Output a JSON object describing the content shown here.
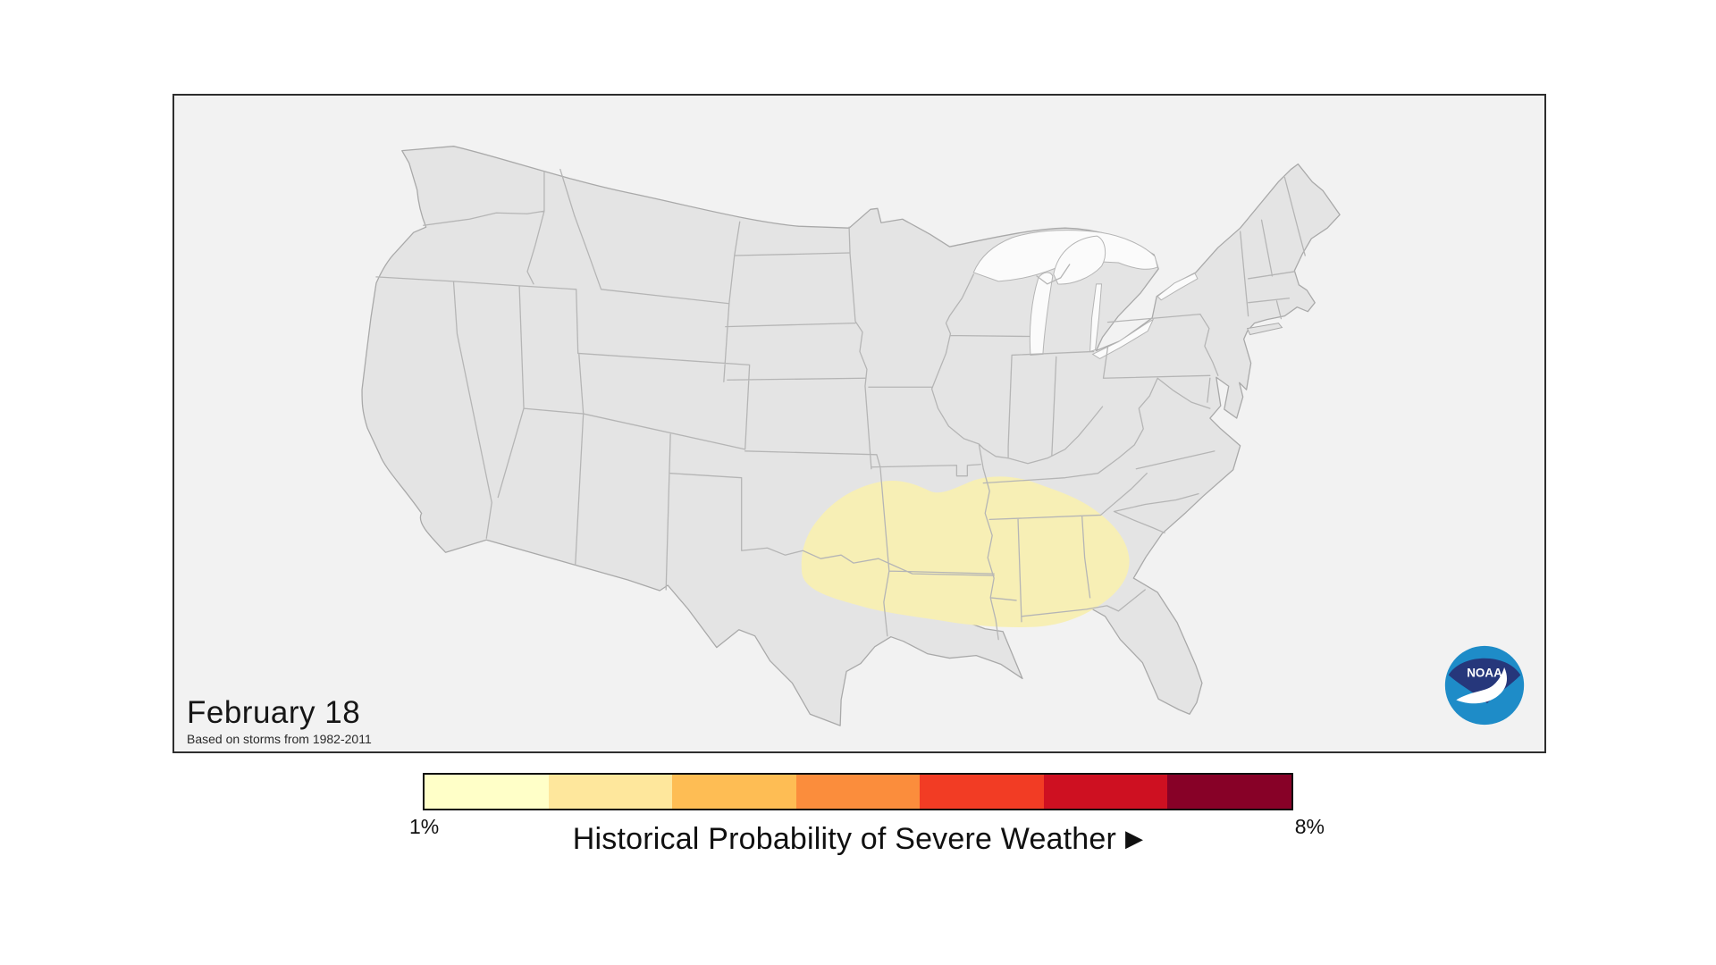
{
  "map_panel": {
    "date_label": "February 18",
    "subtitle": "Based on storms from 1982-2011",
    "background": "#F2F2F2",
    "land_color": "#E4E4E4",
    "state_border_color": "#B5B5B5",
    "water_color": "#FBFBFB",
    "frame_border_color": "#2E2E2E",
    "highlight": {
      "color": "#F7EFB5",
      "legend_bin": 1
    },
    "noaa_logo": {
      "label": "NOAA",
      "navy": "#26377B",
      "light_blue": "#1E8CC8"
    }
  },
  "legend": {
    "min_label": "1%",
    "max_label": "8%",
    "title": "Historical Probability of Severe Weather",
    "arrow_icon": "▶",
    "colors": [
      "#FFFFC8",
      "#FEE79C",
      "#FEBD54",
      "#FB8D3C",
      "#F23C24",
      "#CE1021",
      "#870127"
    ]
  },
  "chart_data": {
    "type": "heatmap",
    "title": "Historical Probability of Severe Weather",
    "date": "February 18",
    "source_note": "Based on storms from 1982-2011",
    "scale": {
      "min": "1%",
      "max": "8%",
      "bins": 7
    },
    "highlighted_area": "South-central US: eastern Texas/Oklahoma, Arkansas, Louisiana, Mississippi, Alabama, western Georgia",
    "highlighted_value": "lowest bin (~1%)"
  }
}
